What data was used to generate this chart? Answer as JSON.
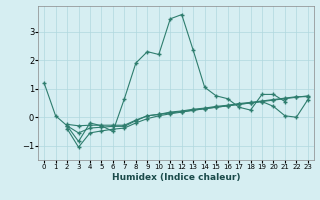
{
  "title": "",
  "xlabel": "Humidex (Indice chaleur)",
  "background_color": "#d6eef2",
  "grid_color": "#b0d8de",
  "line_color": "#2e7d6e",
  "xlim": [
    -0.5,
    23.5
  ],
  "ylim": [
    -1.5,
    3.9
  ],
  "yticks": [
    -1,
    0,
    1,
    2,
    3
  ],
  "xticks": [
    0,
    1,
    2,
    3,
    4,
    5,
    6,
    7,
    8,
    9,
    10,
    11,
    12,
    13,
    14,
    15,
    16,
    17,
    18,
    19,
    20,
    21,
    22,
    23
  ],
  "series": [
    {
      "x": [
        0,
        1,
        2,
        3,
        4,
        5,
        6,
        7,
        8,
        9,
        10,
        11,
        12,
        13,
        14,
        15,
        16,
        17,
        18,
        19,
        20,
        21,
        22
      ],
      "y": [
        1.2,
        0.05,
        -0.3,
        -0.85,
        -0.2,
        -0.3,
        -0.5,
        0.65,
        1.9,
        2.3,
        2.2,
        3.45,
        3.6,
        2.35,
        1.05,
        0.75,
        0.65,
        0.35,
        0.25,
        0.8,
        0.8,
        0.55,
        null
      ]
    },
    {
      "x": [
        2,
        3,
        4,
        5,
        6,
        7,
        8,
        9,
        10,
        11,
        12,
        13,
        14,
        15,
        16,
        17,
        18,
        19,
        20,
        21,
        22,
        23
      ],
      "y": [
        -0.25,
        -0.3,
        -0.28,
        -0.28,
        -0.28,
        -0.28,
        -0.1,
        0.05,
        0.1,
        0.18,
        0.22,
        0.28,
        0.32,
        0.38,
        0.42,
        0.48,
        0.52,
        0.57,
        0.62,
        0.67,
        0.72,
        0.72
      ]
    },
    {
      "x": [
        2,
        3,
        4,
        5,
        6,
        7,
        8,
        9,
        10,
        11,
        12,
        13,
        14,
        15,
        16,
        17,
        18,
        19,
        20,
        21,
        22,
        23
      ],
      "y": [
        -0.4,
        -1.05,
        -0.55,
        -0.48,
        -0.42,
        -0.38,
        -0.2,
        -0.05,
        0.05,
        0.12,
        0.18,
        0.24,
        0.3,
        0.35,
        0.4,
        0.46,
        0.5,
        0.55,
        0.38,
        0.05,
        0.0,
        0.62
      ]
    },
    {
      "x": [
        2,
        3,
        4,
        5,
        6,
        7,
        8,
        9,
        10,
        11,
        12,
        13,
        14,
        15,
        16,
        17,
        18,
        19,
        20,
        21,
        22,
        23
      ],
      "y": [
        -0.3,
        -0.55,
        -0.38,
        -0.35,
        -0.32,
        -0.32,
        -0.12,
        0.05,
        0.1,
        0.15,
        0.2,
        0.25,
        0.3,
        0.35,
        0.4,
        0.45,
        0.5,
        0.55,
        0.6,
        0.65,
        0.7,
        0.75
      ]
    }
  ]
}
